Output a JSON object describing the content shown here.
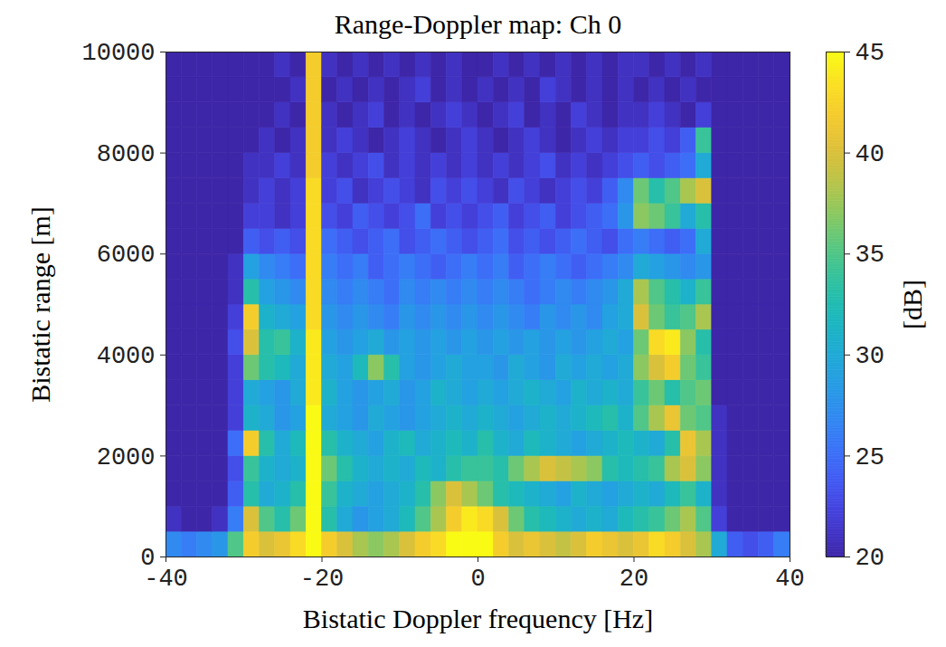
{
  "chart_data": {
    "type": "heatmap",
    "title": "Range-Doppler map: Ch 0",
    "x_label": "Bistatic Doppler frequency [Hz]",
    "y_label": "Bistatic range [m]",
    "xlim": [
      -40,
      40
    ],
    "xticks": [
      -40,
      -20,
      0,
      20,
      40
    ],
    "ylim": [
      0,
      10000
    ],
    "yticks": [
      0,
      2000,
      4000,
      6000,
      8000,
      10000
    ],
    "x_bins": [
      -40,
      -38,
      -36,
      -34,
      -32,
      -30,
      -28,
      -26,
      -24,
      -22,
      -20,
      -18,
      -16,
      -14,
      -12,
      -10,
      -8,
      -6,
      -4,
      -2,
      0,
      2,
      4,
      6,
      8,
      10,
      12,
      14,
      16,
      18,
      20,
      22,
      24,
      26,
      28,
      30,
      32,
      34,
      36,
      38,
      40
    ],
    "y_bins": [
      0,
      500,
      1000,
      1500,
      2000,
      2500,
      3000,
      3500,
      4000,
      4500,
      5000,
      5500,
      6000,
      6500,
      7000,
      7500,
      8000,
      8500,
      9000,
      9500,
      10000
    ],
    "values": [
      [
        27,
        26,
        27,
        28,
        35,
        42,
        40,
        41,
        43,
        45,
        42,
        40,
        38,
        37,
        38,
        40,
        42,
        43,
        45,
        45,
        45,
        42,
        40,
        41,
        40,
        39,
        40,
        42,
        41,
        40,
        41,
        43,
        42,
        40,
        38,
        30,
        24,
        23,
        24,
        26
      ],
      [
        21,
        20,
        20,
        21,
        26,
        40,
        35,
        33,
        36,
        45,
        33,
        30,
        28,
        29,
        30,
        32,
        35,
        38,
        42,
        44,
        43,
        40,
        36,
        33,
        32,
        31,
        30,
        31,
        30,
        32,
        33,
        34,
        36,
        38,
        35,
        22,
        20,
        20,
        20,
        20
      ],
      [
        20,
        20,
        20,
        20,
        24,
        33,
        30,
        31,
        33,
        45,
        34,
        31,
        30,
        29,
        30,
        31,
        33,
        37,
        40,
        38,
        36,
        33,
        32,
        31,
        30,
        29,
        31,
        30,
        29,
        30,
        31,
        30,
        32,
        34,
        31,
        21,
        20,
        20,
        20,
        20
      ],
      [
        20,
        20,
        20,
        20,
        23,
        34,
        31,
        30,
        31,
        45,
        36,
        33,
        31,
        30,
        31,
        30,
        32,
        31,
        33,
        34,
        34,
        33,
        36,
        38,
        40,
        39,
        38,
        37,
        33,
        32,
        33,
        34,
        38,
        40,
        37,
        21,
        20,
        20,
        20,
        20
      ],
      [
        20,
        20,
        20,
        20,
        25,
        42,
        33,
        30,
        32,
        45,
        33,
        31,
        30,
        29,
        31,
        32,
        30,
        31,
        32,
        31,
        33,
        31,
        30,
        32,
        31,
        30,
        29,
        30,
        31,
        32,
        31,
        30,
        33,
        41,
        38,
        21,
        20,
        20,
        20,
        20
      ],
      [
        20,
        20,
        20,
        20,
        22,
        31,
        30,
        28,
        29,
        45,
        30,
        29,
        28,
        30,
        29,
        28,
        29,
        30,
        31,
        30,
        31,
        30,
        29,
        30,
        31,
        30,
        31,
        32,
        33,
        31,
        35,
        38,
        41,
        36,
        35,
        21,
        20,
        20,
        20,
        20
      ],
      [
        20,
        20,
        20,
        20,
        22,
        30,
        29,
        28,
        30,
        44,
        31,
        29,
        28,
        29,
        30,
        28,
        29,
        31,
        30,
        29,
        30,
        29,
        30,
        31,
        30,
        29,
        31,
        30,
        31,
        30,
        34,
        36,
        33,
        35,
        36,
        20,
        20,
        20,
        20,
        20
      ],
      [
        20,
        20,
        20,
        20,
        22,
        36,
        33,
        32,
        30,
        44,
        30,
        29,
        32,
        37,
        33,
        29,
        28,
        29,
        30,
        29,
        29,
        28,
        30,
        29,
        28,
        30,
        29,
        30,
        29,
        30,
        37,
        40,
        42,
        36,
        34,
        20,
        20,
        20,
        20,
        20
      ],
      [
        20,
        20,
        20,
        20,
        23,
        40,
        33,
        34,
        31,
        44,
        29,
        28,
        29,
        30,
        28,
        29,
        28,
        29,
        28,
        29,
        28,
        29,
        28,
        29,
        28,
        29,
        28,
        29,
        30,
        29,
        36,
        43,
        44,
        37,
        33,
        20,
        20,
        20,
        20,
        20
      ],
      [
        20,
        20,
        20,
        20,
        22,
        42,
        31,
        30,
        29,
        43,
        28,
        27,
        28,
        27,
        26,
        28,
        27,
        28,
        27,
        28,
        27,
        28,
        27,
        26,
        28,
        27,
        28,
        27,
        29,
        30,
        40,
        36,
        34,
        35,
        38,
        20,
        20,
        20,
        20,
        20
      ],
      [
        20,
        20,
        20,
        20,
        21,
        33,
        29,
        28,
        27,
        43,
        27,
        26,
        27,
        26,
        25,
        27,
        26,
        27,
        26,
        27,
        26,
        27,
        26,
        25,
        26,
        27,
        26,
        27,
        28,
        30,
        38,
        35,
        33,
        31,
        34,
        20,
        20,
        20,
        20,
        20
      ],
      [
        20,
        20,
        20,
        20,
        21,
        29,
        27,
        26,
        25,
        43,
        26,
        25,
        26,
        24,
        25,
        26,
        25,
        24,
        25,
        26,
        25,
        26,
        24,
        25,
        26,
        25,
        24,
        25,
        26,
        27,
        30,
        29,
        28,
        27,
        28,
        20,
        20,
        20,
        20,
        20
      ],
      [
        20,
        20,
        20,
        20,
        20,
        24,
        23,
        24,
        23,
        43,
        25,
        24,
        23,
        24,
        25,
        23,
        24,
        25,
        24,
        23,
        24,
        25,
        23,
        24,
        23,
        24,
        25,
        24,
        23,
        25,
        26,
        25,
        24,
        25,
        30,
        20,
        20,
        20,
        20,
        20
      ],
      [
        20,
        20,
        20,
        20,
        20,
        22,
        22,
        21,
        22,
        43,
        23,
        22,
        24,
        23,
        22,
        23,
        25,
        22,
        23,
        22,
        23,
        24,
        22,
        23,
        24,
        22,
        23,
        24,
        25,
        28,
        37,
        36,
        34,
        30,
        33,
        20,
        20,
        20,
        20,
        20
      ],
      [
        20,
        20,
        20,
        20,
        20,
        21,
        22,
        21,
        22,
        43,
        22,
        23,
        21,
        22,
        23,
        22,
        21,
        23,
        22,
        23,
        22,
        21,
        23,
        22,
        21,
        22,
        23,
        22,
        24,
        27,
        36,
        33,
        35,
        38,
        40,
        20,
        20,
        20,
        20,
        20
      ],
      [
        20,
        20,
        20,
        20,
        20,
        21,
        21,
        22,
        21,
        42,
        22,
        21,
        22,
        23,
        21,
        22,
        21,
        22,
        21,
        22,
        21,
        22,
        21,
        22,
        23,
        21,
        22,
        21,
        22,
        23,
        24,
        23,
        24,
        25,
        30,
        20,
        20,
        20,
        20,
        20
      ],
      [
        20,
        20,
        20,
        20,
        20,
        20,
        21,
        20,
        21,
        42,
        21,
        22,
        21,
        20,
        21,
        22,
        21,
        20,
        21,
        22,
        21,
        20,
        21,
        22,
        21,
        20,
        21,
        22,
        21,
        22,
        22,
        23,
        22,
        24,
        34,
        20,
        20,
        20,
        20,
        20
      ],
      [
        20,
        20,
        20,
        20,
        20,
        20,
        20,
        21,
        20,
        42,
        21,
        20,
        21,
        22,
        20,
        21,
        20,
        21,
        22,
        21,
        20,
        21,
        22,
        20,
        21,
        20,
        22,
        21,
        20,
        21,
        21,
        22,
        21,
        20,
        22,
        20,
        20,
        20,
        20,
        20
      ],
      [
        20,
        20,
        20,
        20,
        20,
        20,
        20,
        20,
        21,
        42,
        20,
        21,
        20,
        21,
        20,
        21,
        22,
        20,
        21,
        20,
        21,
        20,
        21,
        20,
        22,
        21,
        20,
        21,
        20,
        21,
        20,
        21,
        20,
        21,
        20,
        20,
        20,
        20,
        20,
        20
      ],
      [
        20,
        20,
        20,
        20,
        20,
        20,
        20,
        21,
        20,
        42,
        21,
        20,
        21,
        20,
        21,
        20,
        21,
        20,
        21,
        20,
        20,
        21,
        20,
        21,
        20,
        21,
        20,
        21,
        20,
        21,
        21,
        20,
        21,
        20,
        21,
        20,
        20,
        20,
        20,
        20
      ]
    ],
    "colorbar": {
      "label": "[dB]",
      "range": [
        20,
        45
      ],
      "ticks": [
        20,
        25,
        30,
        35,
        40,
        45
      ]
    }
  }
}
